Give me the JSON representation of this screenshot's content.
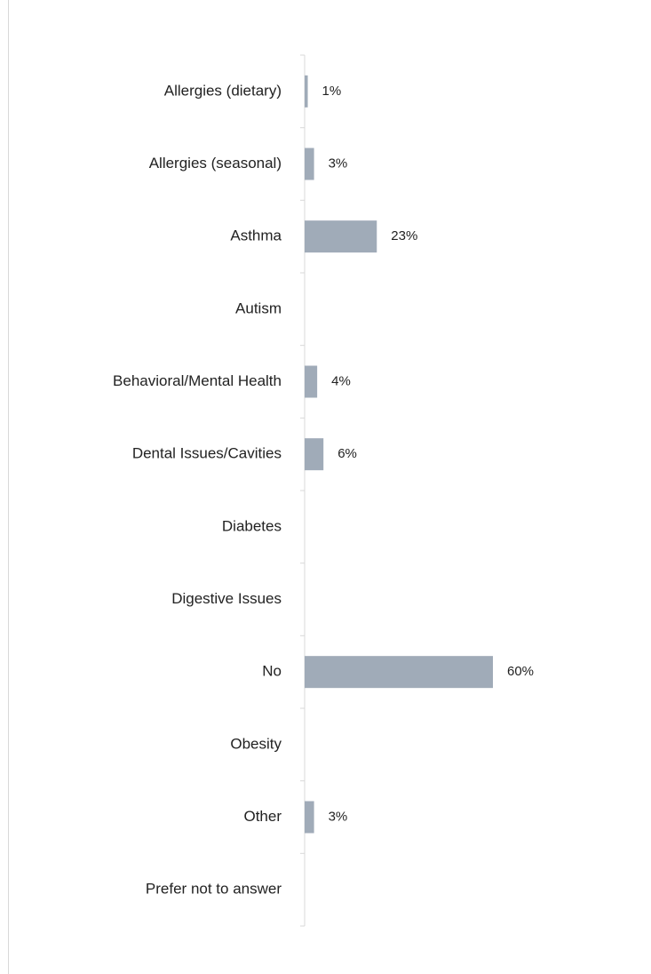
{
  "chart_data": {
    "type": "bar",
    "orientation": "horizontal",
    "categories": [
      "Allergies (dietary)",
      "Allergies (seasonal)",
      "Asthma",
      "Autism",
      "Behavioral/Mental Health",
      "Dental Issues/Cavities",
      "Diabetes",
      "Digestive Issues",
      "No",
      "Obesity",
      "Other",
      "Prefer not to answer"
    ],
    "values": [
      1,
      3,
      23,
      null,
      4,
      6,
      null,
      null,
      60,
      null,
      3,
      null
    ],
    "value_labels": [
      "1%",
      "3%",
      "23%",
      null,
      "4%",
      "6%",
      null,
      null,
      "60%",
      null,
      "3%",
      null
    ],
    "color": "#a0abb8"
  }
}
